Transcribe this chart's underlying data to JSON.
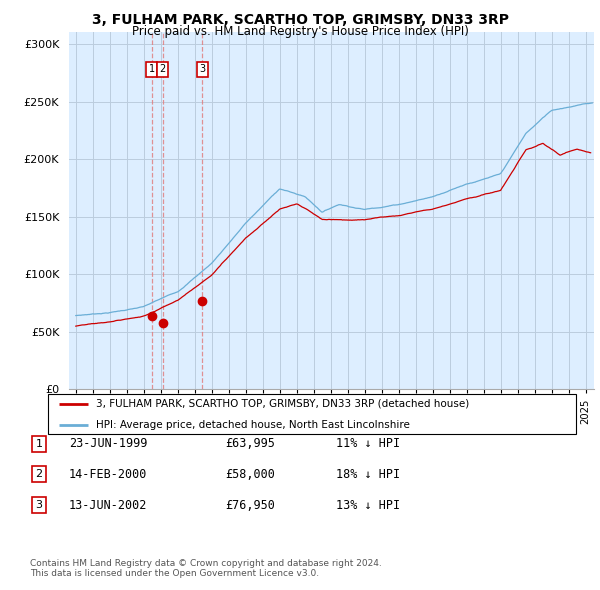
{
  "title": "3, FULHAM PARK, SCARTHO TOP, GRIMSBY, DN33 3RP",
  "subtitle": "Price paid vs. HM Land Registry's House Price Index (HPI)",
  "legend_line1": "3, FULHAM PARK, SCARTHO TOP, GRIMSBY, DN33 3RP (detached house)",
  "legend_line2": "HPI: Average price, detached house, North East Lincolnshire",
  "footer1": "Contains HM Land Registry data © Crown copyright and database right 2024.",
  "footer2": "This data is licensed under the Open Government Licence v3.0.",
  "transactions": [
    {
      "num": 1,
      "date": "23-JUN-1999",
      "price": "£63,995",
      "hpi": "11% ↓ HPI",
      "year": 1999.47,
      "price_val": 63995
    },
    {
      "num": 2,
      "date": "14-FEB-2000",
      "price": "£58,000",
      "hpi": "18% ↓ HPI",
      "year": 2000.12,
      "price_val": 58000
    },
    {
      "num": 3,
      "date": "13-JUN-2002",
      "price": "£76,950",
      "hpi": "13% ↓ HPI",
      "year": 2002.45,
      "price_val": 76950
    }
  ],
  "hpi_color": "#6aaed6",
  "price_color": "#cc0000",
  "vline_color": "#e08080",
  "ylim": [
    0,
    310000
  ],
  "yticks": [
    0,
    50000,
    100000,
    150000,
    200000,
    250000,
    300000
  ],
  "ytick_labels": [
    "£0",
    "£50K",
    "£100K",
    "£150K",
    "£200K",
    "£250K",
    "£300K"
  ],
  "xmin": 1994.6,
  "xmax": 2025.5,
  "chart_bg": "#ddeeff",
  "grid_color": "#bbccdd"
}
